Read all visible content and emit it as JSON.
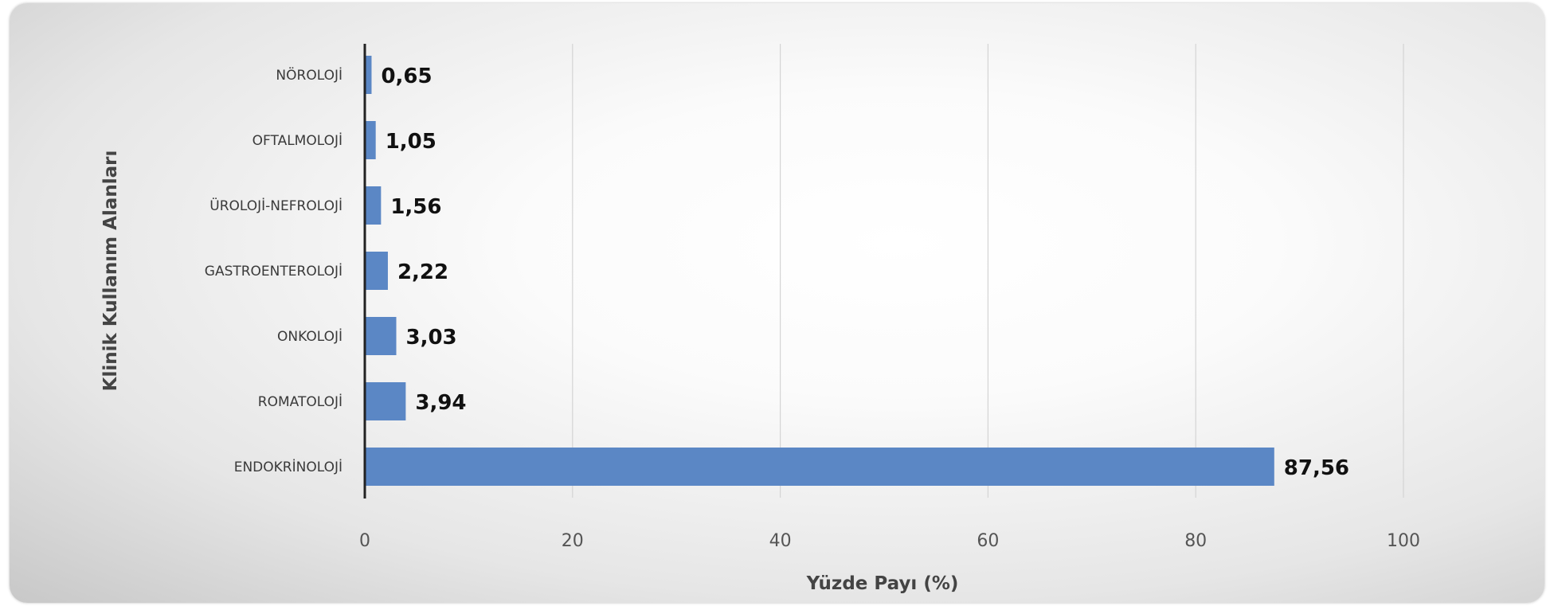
{
  "chart_data": {
    "type": "bar",
    "orientation": "horizontal",
    "categories": [
      "NÖROLOJİ",
      "OFTALMOLOJİ",
      "ÜROLOJİ-NEFROLOJİ",
      "GASTROENTEROLOJİ",
      "ONKOLOJİ",
      "ROMATOLOJİ",
      "ENDOKRİNOLOJİ"
    ],
    "values": [
      0.65,
      1.05,
      1.56,
      2.22,
      3.03,
      3.94,
      87.56
    ],
    "data_labels": [
      "0,65",
      "1,05",
      "1,56",
      "2,22",
      "3,03",
      "3,94",
      "87,56"
    ],
    "xlabel": "Yüzde Payı (%)",
    "ylabel": "Klinik Kullanım Alanları",
    "xlim": [
      0,
      100
    ],
    "xticks": [
      0,
      20,
      40,
      60,
      80,
      100
    ],
    "grid": true,
    "legend": "none",
    "bar_color": "#5b87c5"
  }
}
